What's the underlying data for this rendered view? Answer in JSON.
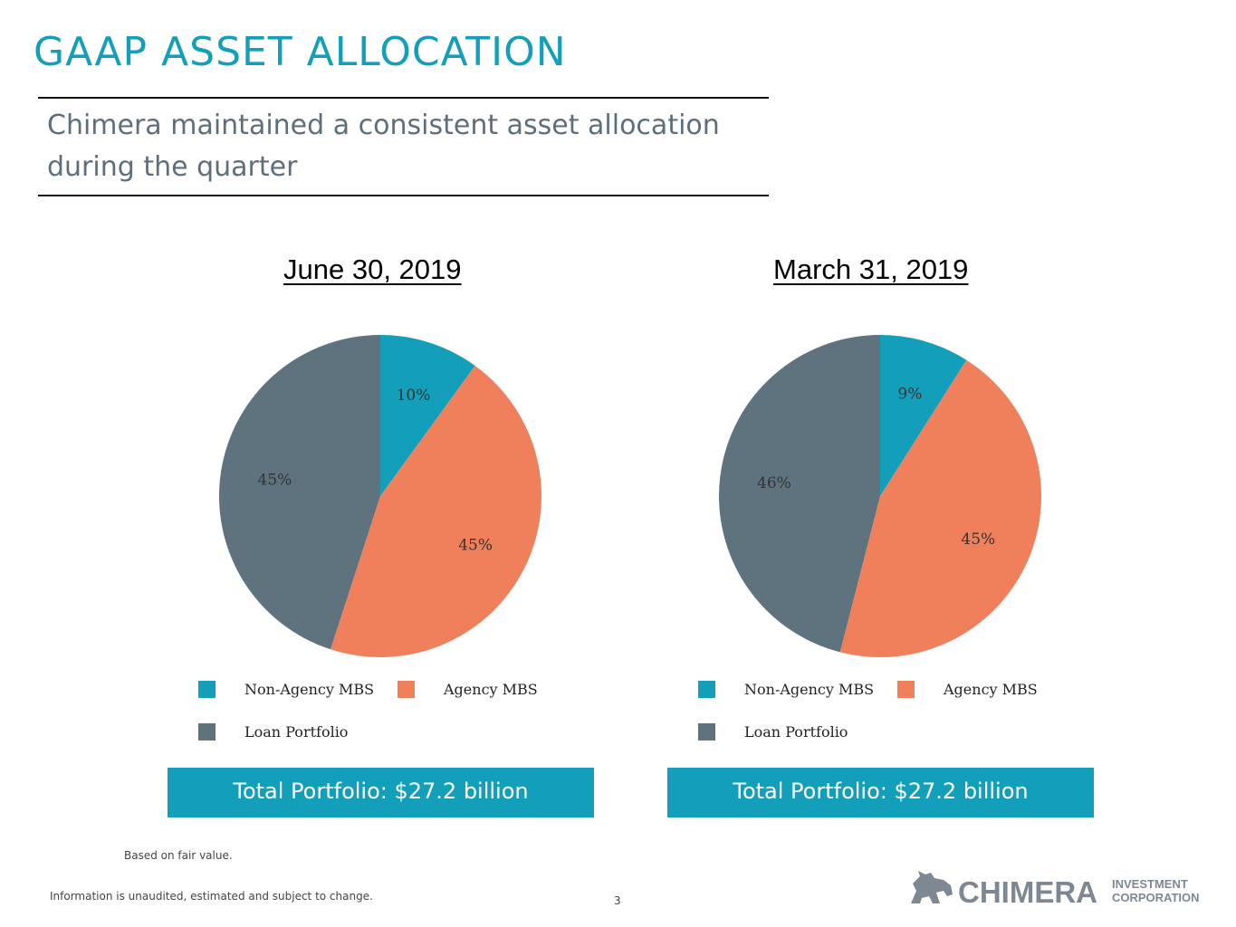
{
  "slide": {
    "title": "GAAP ASSET ALLOCATION",
    "subtitle": "Chimera maintained a consistent asset allocation during the quarter",
    "footnote": "Based on fair value.",
    "disclaimer": "Information is unaudited, estimated and subject to change.",
    "page_number": "3",
    "logo": {
      "company": "CHIMERA",
      "line1": "INVESTMENT",
      "line2": "CORPORATION",
      "color": "#7d8892"
    }
  },
  "colors": {
    "non_agency_mbs": "#139fb9",
    "agency_mbs": "#f0805c",
    "loan_portfolio": "#5f737f",
    "title": "#139fb9"
  },
  "chart_data": [
    {
      "type": "pie",
      "title": "June 30, 2019",
      "categories": [
        "Non-Agency MBS",
        "Agency MBS",
        "Loan Portfolio"
      ],
      "values": [
        10,
        45,
        45
      ],
      "labels": [
        "10%",
        "45%",
        "45%"
      ],
      "legend": "bottom",
      "total": "Total Portfolio: $27.2 billion"
    },
    {
      "type": "pie",
      "title": "March 31, 2019",
      "categories": [
        "Non-Agency MBS",
        "Agency MBS",
        "Loan Portfolio"
      ],
      "values": [
        9,
        45,
        46
      ],
      "labels": [
        "9%",
        "45%",
        "46%"
      ],
      "legend": "bottom",
      "total": "Total Portfolio: $27.2 billion"
    }
  ]
}
